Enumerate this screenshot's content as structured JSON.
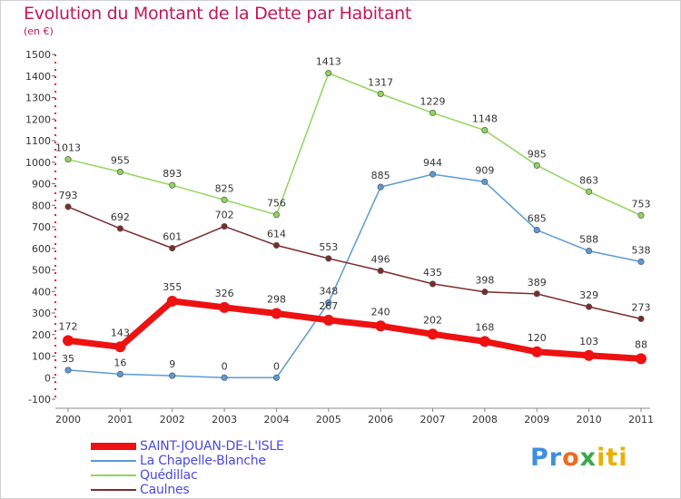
{
  "chart_data": {
    "type": "line",
    "title": "Evolution du Montant de la Dette par Habitant",
    "subtitle": "(en €)",
    "x": [
      "2000",
      "2001",
      "2002",
      "2003",
      "2004",
      "2005",
      "2006",
      "2007",
      "2008",
      "2009",
      "2010",
      "2011"
    ],
    "y_ticks": [
      -100,
      0,
      100,
      200,
      300,
      400,
      500,
      600,
      700,
      800,
      900,
      1000,
      1100,
      1200,
      1300,
      1400,
      1500
    ],
    "ylim": [
      -100,
      1500
    ],
    "grid": false,
    "legend_position": "bottom-left",
    "series": [
      {
        "name": "Quédillac",
        "color": "#8ed65a",
        "width": 1.5,
        "values": [
          1013,
          955,
          893,
          825,
          756,
          1413,
          1317,
          1229,
          1148,
          985,
          863,
          753
        ]
      },
      {
        "name": "La Chapelle-Blanche",
        "color": "#5a9bd5",
        "width": 1.5,
        "values": [
          35,
          16,
          9,
          0,
          0,
          348,
          885,
          944,
          909,
          685,
          588,
          538
        ]
      },
      {
        "name": "Caulnes",
        "color": "#7b2c2c",
        "width": 1.5,
        "values": [
          793,
          692,
          601,
          702,
          614,
          553,
          496,
          435,
          398,
          389,
          329,
          273
        ]
      },
      {
        "name": "SAINT-JOUAN-DE-L'ISLE",
        "color": "#ee1111",
        "width": 7,
        "values": [
          172,
          143,
          355,
          326,
          298,
          267,
          240,
          202,
          168,
          120,
          103,
          88
        ]
      }
    ],
    "legend_order": [
      "SAINT-JOUAN-DE-L'ISLE",
      "La Chapelle-Blanche",
      "Quédillac",
      "Caulnes"
    ]
  },
  "logo": {
    "p1": "Pr",
    "p2": "o",
    "p3": "x",
    "p4": "iti"
  }
}
